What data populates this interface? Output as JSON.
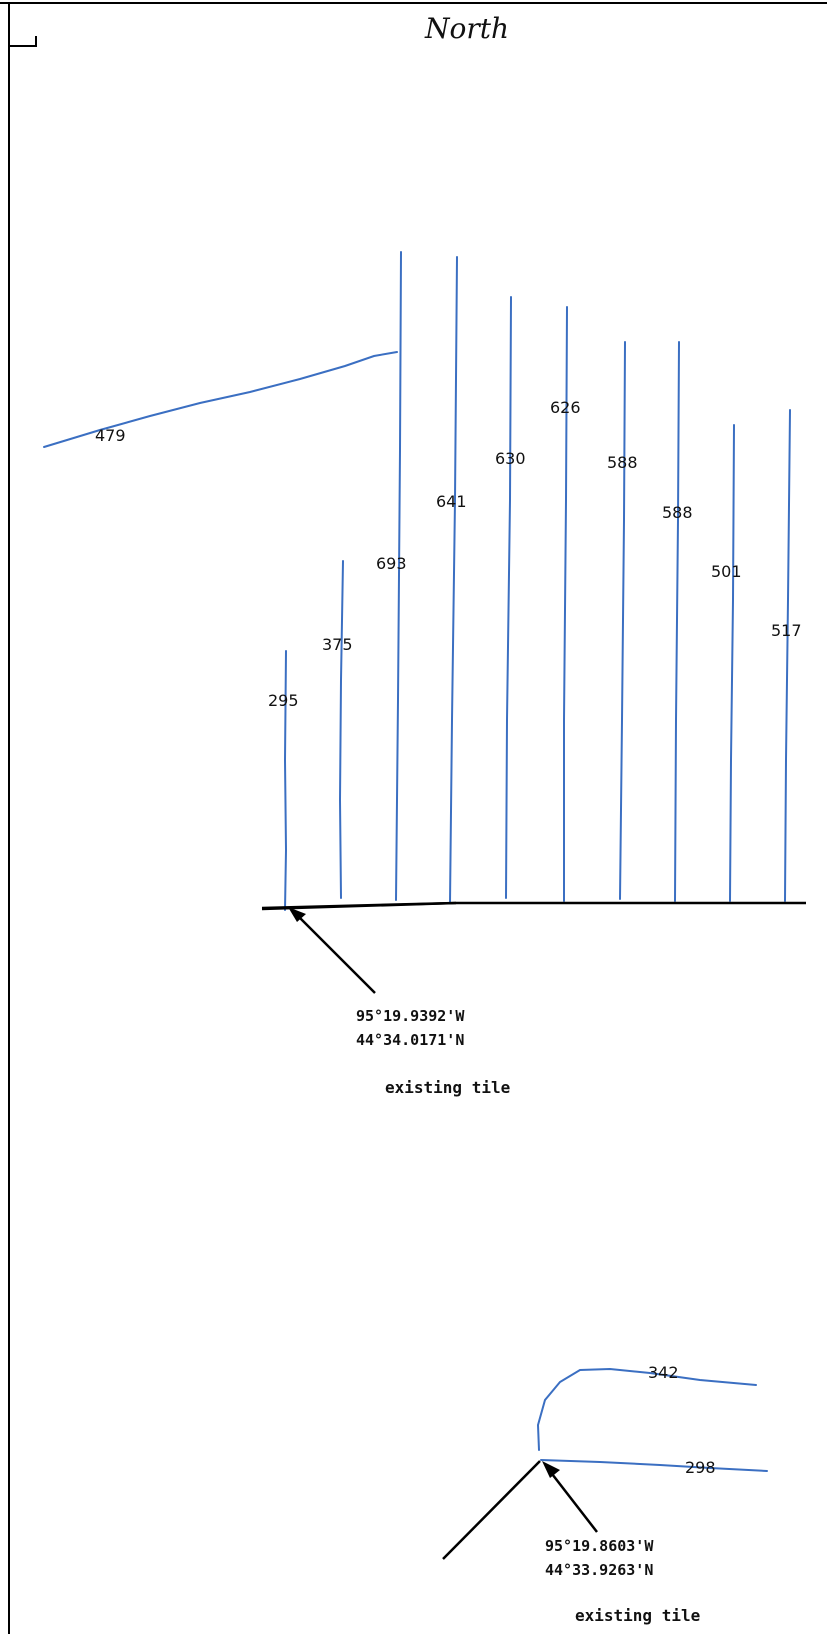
{
  "page": {
    "title": "North"
  },
  "colors": {
    "tile_line": "#3b6fc2",
    "ink": "#000000"
  },
  "tiles": [
    {
      "id": "t479",
      "label": "479"
    },
    {
      "id": "t295",
      "label": "295"
    },
    {
      "id": "t375",
      "label": "375"
    },
    {
      "id": "t693",
      "label": "693"
    },
    {
      "id": "t641",
      "label": "641"
    },
    {
      "id": "t630",
      "label": "630"
    },
    {
      "id": "t626",
      "label": "626"
    },
    {
      "id": "t588a",
      "label": "588"
    },
    {
      "id": "t588b",
      "label": "588"
    },
    {
      "id": "t501",
      "label": "501"
    },
    {
      "id": "t517",
      "label": "517"
    },
    {
      "id": "t342",
      "label": "342"
    },
    {
      "id": "t298",
      "label": "298"
    }
  ],
  "points": [
    {
      "id": "north-field",
      "longitude": "95°19.9392'W",
      "latitude": "44°34.0171'N",
      "note": "existing tile"
    },
    {
      "id": "south-field",
      "longitude": "95°19.8603'W",
      "latitude": "44°33.9263'N",
      "note": "existing tile"
    }
  ]
}
